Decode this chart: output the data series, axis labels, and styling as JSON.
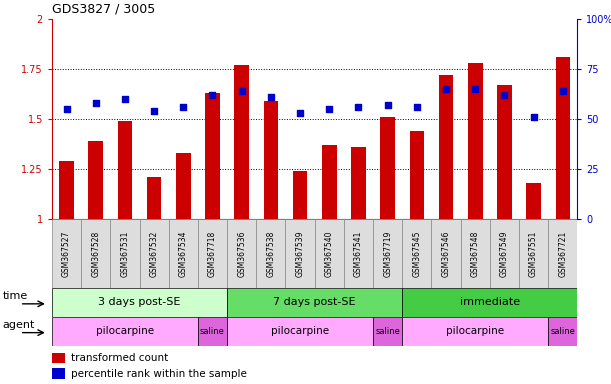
{
  "title": "GDS3827 / 3005",
  "samples": [
    "GSM367527",
    "GSM367528",
    "GSM367531",
    "GSM367532",
    "GSM367534",
    "GSM367718",
    "GSM367536",
    "GSM367538",
    "GSM367539",
    "GSM367540",
    "GSM367541",
    "GSM367719",
    "GSM367545",
    "GSM367546",
    "GSM367548",
    "GSM367549",
    "GSM367551",
    "GSM367721"
  ],
  "transformed_count": [
    1.29,
    1.39,
    1.49,
    1.21,
    1.33,
    1.63,
    1.77,
    1.59,
    1.24,
    1.37,
    1.36,
    1.51,
    1.44,
    1.72,
    1.78,
    1.67,
    1.18,
    1.81
  ],
  "percentile_rank": [
    55,
    58,
    60,
    54,
    56,
    62,
    64,
    61,
    53,
    55,
    56,
    57,
    56,
    65,
    65,
    62,
    51,
    64
  ],
  "bar_color": "#cc0000",
  "dot_color": "#0000cc",
  "ylim_left": [
    1.0,
    2.0
  ],
  "yticks_left": [
    1.0,
    1.25,
    1.5,
    1.75,
    2.0
  ],
  "ytick_labels_left": [
    "1",
    "1.25",
    "1.5",
    "1.75",
    "2"
  ],
  "ytick_labels_right": [
    "0",
    "25",
    "50",
    "75",
    "100%"
  ],
  "hlines": [
    1.25,
    1.5,
    1.75
  ],
  "time_groups": [
    {
      "label": "3 days post-SE",
      "start": 0,
      "end": 6,
      "color": "#ccffcc"
    },
    {
      "label": "7 days post-SE",
      "start": 6,
      "end": 12,
      "color": "#66dd66"
    },
    {
      "label": "immediate",
      "start": 12,
      "end": 18,
      "color": "#44cc44"
    }
  ],
  "agent_groups": [
    {
      "label": "pilocarpine",
      "start": 0,
      "end": 5,
      "color": "#ffaaff"
    },
    {
      "label": "saline",
      "start": 5,
      "end": 6,
      "color": "#dd66dd"
    },
    {
      "label": "pilocarpine",
      "start": 6,
      "end": 11,
      "color": "#ffaaff"
    },
    {
      "label": "saline",
      "start": 11,
      "end": 12,
      "color": "#dd66dd"
    },
    {
      "label": "pilocarpine",
      "start": 12,
      "end": 17,
      "color": "#ffaaff"
    },
    {
      "label": "saline",
      "start": 17,
      "end": 18,
      "color": "#dd66dd"
    }
  ],
  "legend_bar_label": "transformed count",
  "legend_dot_label": "percentile rank within the sample",
  "time_label": "time",
  "agent_label": "agent",
  "bg_color": "#ffffff",
  "tick_label_color_left": "#cc0000",
  "tick_label_color_right": "#0000cc",
  "bar_bottom": 1.0,
  "bar_width": 0.5,
  "dot_size": 25,
  "sample_box_color": "#dddddd",
  "sample_box_edge": "#888888"
}
